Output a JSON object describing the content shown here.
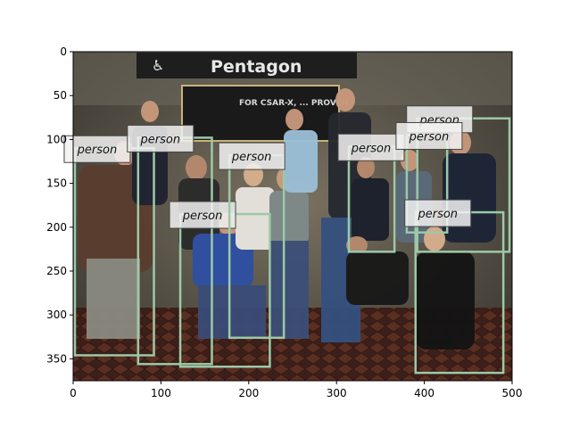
{
  "scene": {
    "sign_text": "Pentagon",
    "poster_text": "FOR CSAR-X, ... PROVEN"
  },
  "colors": {
    "box_stroke": "#9cc9a8",
    "label_bg": "#f2f2f2"
  },
  "chart_data": {
    "type": "image-annotation",
    "xlim": [
      0,
      500
    ],
    "ylim": [
      375,
      0
    ],
    "x_ticks": [
      0,
      100,
      200,
      300,
      400,
      500
    ],
    "y_ticks": [
      0,
      50,
      100,
      150,
      200,
      250,
      300,
      350
    ],
    "boxes": [
      {
        "label": "person",
        "x0": 2,
        "y0": 110,
        "x1": 92,
        "y1": 346
      },
      {
        "label": "person",
        "x0": 74,
        "y0": 98,
        "x1": 158,
        "y1": 356
      },
      {
        "label": "person",
        "x0": 122,
        "y0": 185,
        "x1": 224,
        "y1": 359
      },
      {
        "label": "person",
        "x0": 178,
        "y0": 118,
        "x1": 240,
        "y1": 326
      },
      {
        "label": "person",
        "x0": 314,
        "y0": 108,
        "x1": 366,
        "y1": 228
      },
      {
        "label": "person",
        "x0": 392,
        "y0": 76,
        "x1": 497,
        "y1": 228
      },
      {
        "label": "person",
        "x0": 380,
        "y0": 95,
        "x1": 426,
        "y1": 206
      },
      {
        "label": "person",
        "x0": 390,
        "y0": 183,
        "x1": 490,
        "y1": 366
      }
    ]
  }
}
